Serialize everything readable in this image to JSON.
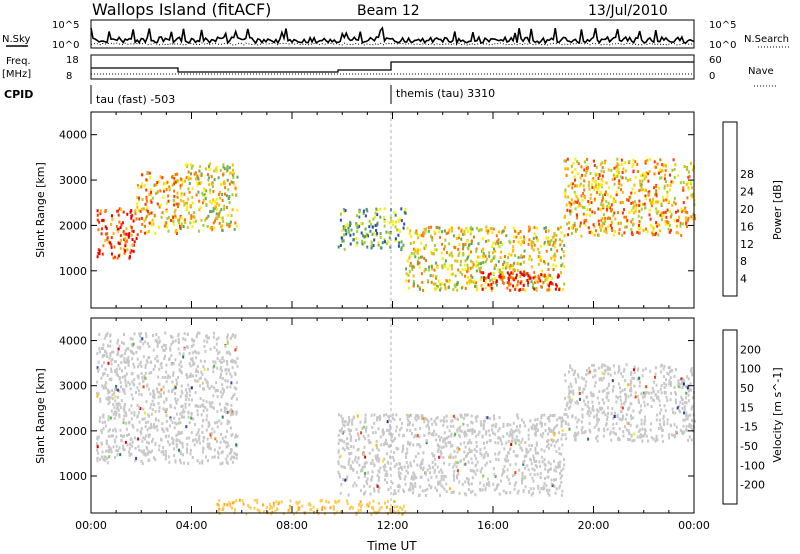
{
  "header": {
    "station": "Wallops Island (fitACF)",
    "beam": "Beam 12",
    "date": "13/Jul/2010"
  },
  "status_panels": {
    "nsky_label": "N.Sky",
    "nsky_ticks": [
      "10^5",
      "10^0"
    ],
    "nsearch_label": "N.Search",
    "nsearch_ticks": [
      "10^5",
      "10^0"
    ],
    "freq_label": "Freq.",
    "freq_unit": "[MHz]",
    "freq_ticks": [
      "18",
      "8"
    ],
    "nave_label": "Nave",
    "nave_ticks": [
      "60",
      "0"
    ],
    "cpid_label": "CPID",
    "cpid_segments": [
      {
        "label": "tau (fast) -503",
        "start_hour": 0
      },
      {
        "label": "themis (tau) 3310",
        "start_hour": 12
      }
    ]
  },
  "chart_data": [
    {
      "type": "heatmap",
      "title": "",
      "quantity": "Power",
      "ylabel": "Slant Range [km]",
      "ylim": [
        180,
        4500
      ],
      "yticks": [
        "1000",
        "2000",
        "3000",
        "4000"
      ],
      "xlim_hours": [
        0,
        24
      ],
      "colorbar": {
        "label": "Power [dB]",
        "ticks": [
          "4",
          "8",
          "12",
          "16",
          "20",
          "24",
          "28"
        ],
        "colors": [
          "#0000ff",
          "#2f4cb5",
          "#3d8d74",
          "#5fa95c",
          "#a9cc2f",
          "#fff000",
          "#ffbb00",
          "#ff7700",
          "#ff3300",
          "#ee0000"
        ]
      },
      "echo_regions": [
        {
          "t": [
            0.2,
            1.8
          ],
          "r": [
            1300,
            2400
          ],
          "level": 24
        },
        {
          "t": [
            1.8,
            3.6
          ],
          "r": [
            1800,
            3200
          ],
          "level": 18
        },
        {
          "t": [
            3.6,
            5.8
          ],
          "r": [
            1900,
            3400
          ],
          "level": 14
        },
        {
          "t": [
            9.8,
            12.5
          ],
          "r": [
            1500,
            2400
          ],
          "level": 10
        },
        {
          "t": [
            12.5,
            18.8
          ],
          "r": [
            600,
            2000
          ],
          "level": 16
        },
        {
          "t": [
            15.5,
            18.6
          ],
          "r": [
            600,
            1000
          ],
          "level": 26
        },
        {
          "t": [
            18.8,
            24.0
          ],
          "r": [
            1800,
            3500
          ],
          "level": 18
        }
      ]
    },
    {
      "type": "heatmap",
      "title": "",
      "quantity": "Velocity",
      "ylabel": "Slant Range [km]",
      "ylim": [
        180,
        4500
      ],
      "yticks": [
        "1000",
        "2000",
        "3000",
        "4000"
      ],
      "xlabel": "Time UT",
      "xticks": [
        "00:00",
        "04:00",
        "08:00",
        "12:00",
        "16:00",
        "20:00",
        "00:00"
      ],
      "xlim_hours": [
        0,
        24
      ],
      "colorbar": {
        "label": "Velocity [m s^-1]",
        "ticks": [
          "200",
          "100",
          "50",
          "15",
          "-15",
          "-50",
          "-100",
          "-200"
        ],
        "colors": [
          "#1f2a9c",
          "#2c4db0",
          "#2e7a6a",
          "#52b248",
          "#7fd04a",
          "#c8c8c8",
          "#c8c8c8",
          "#ffe233",
          "#ffbb00",
          "#ff8800",
          "#ff4400",
          "#e00000"
        ]
      },
      "echo_regions": [
        {
          "t": [
            0.2,
            5.8
          ],
          "r": [
            1300,
            4200
          ],
          "velocity": 0
        },
        {
          "t": [
            9.8,
            18.8
          ],
          "r": [
            600,
            2400
          ],
          "velocity": 0
        },
        {
          "t": [
            18.8,
            24.0
          ],
          "r": [
            1800,
            3500
          ],
          "velocity": 0
        },
        {
          "t": [
            5.0,
            12.5
          ],
          "r": [
            180,
            500
          ],
          "velocity": -60
        }
      ]
    }
  ]
}
